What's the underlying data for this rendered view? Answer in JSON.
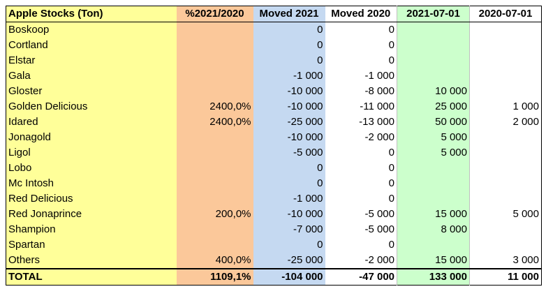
{
  "headers": [
    "Apple Stocks (Ton)",
    "%2021/2020",
    "Moved 2021",
    "Moved 2020",
    "2021-07-01",
    "2020-07-01"
  ],
  "rows": [
    {
      "name": "Boskoop",
      "pct": "",
      "moved2021": "0",
      "moved2020": "0",
      "d2021": "",
      "d2020": ""
    },
    {
      "name": "Cortland",
      "pct": "",
      "moved2021": "0",
      "moved2020": "0",
      "d2021": "",
      "d2020": ""
    },
    {
      "name": "Elstar",
      "pct": "",
      "moved2021": "0",
      "moved2020": "0",
      "d2021": "",
      "d2020": ""
    },
    {
      "name": "Gala",
      "pct": "",
      "moved2021": "-1 000",
      "moved2020": "-1 000",
      "d2021": "",
      "d2020": ""
    },
    {
      "name": "Gloster",
      "pct": "",
      "moved2021": "-10 000",
      "moved2020": "-8 000",
      "d2021": "10 000",
      "d2020": ""
    },
    {
      "name": "Golden Delicious",
      "pct": "2400,0%",
      "moved2021": "-10 000",
      "moved2020": "-11 000",
      "d2021": "25 000",
      "d2020": "1 000"
    },
    {
      "name": "Idared",
      "pct": "2400,0%",
      "moved2021": "-25 000",
      "moved2020": "-13 000",
      "d2021": "50 000",
      "d2020": "2 000"
    },
    {
      "name": "Jonagold",
      "pct": "",
      "moved2021": "-10 000",
      "moved2020": "-2 000",
      "d2021": "5 000",
      "d2020": ""
    },
    {
      "name": "Ligol",
      "pct": "",
      "moved2021": "-5 000",
      "moved2020": "0",
      "d2021": "5 000",
      "d2020": ""
    },
    {
      "name": "Lobo",
      "pct": "",
      "moved2021": "0",
      "moved2020": "0",
      "d2021": "",
      "d2020": ""
    },
    {
      "name": "Mc Intosh",
      "pct": "",
      "moved2021": "0",
      "moved2020": "0",
      "d2021": "",
      "d2020": ""
    },
    {
      "name": "Red Delicious",
      "pct": "",
      "moved2021": "-1 000",
      "moved2020": "0",
      "d2021": "",
      "d2020": ""
    },
    {
      "name": "Red Jonaprince",
      "pct": "200,0%",
      "moved2021": "-10 000",
      "moved2020": "-5 000",
      "d2021": "15 000",
      "d2020": "5 000"
    },
    {
      "name": "Shampion",
      "pct": "",
      "moved2021": "-7 000",
      "moved2020": "-5 000",
      "d2021": "8 000",
      "d2020": ""
    },
    {
      "name": "Spartan",
      "pct": "",
      "moved2021": "0",
      "moved2020": "0",
      "d2021": "",
      "d2020": ""
    },
    {
      "name": "Others",
      "pct": "400,0%",
      "moved2021": "-25 000",
      "moved2020": "-2 000",
      "d2021": "15 000",
      "d2020": "3 000"
    }
  ],
  "total": {
    "name": "TOTAL",
    "pct": "1109,1%",
    "moved2021": "-104 000",
    "moved2020": "-47 000",
    "d2021": "133 000",
    "d2020": "11 000"
  },
  "colors": {
    "name_col": "#ffff99",
    "pct_col": "#fbc89a",
    "moved2021_col": "#c5d9f1",
    "d2021_col": "#ccffcc"
  }
}
